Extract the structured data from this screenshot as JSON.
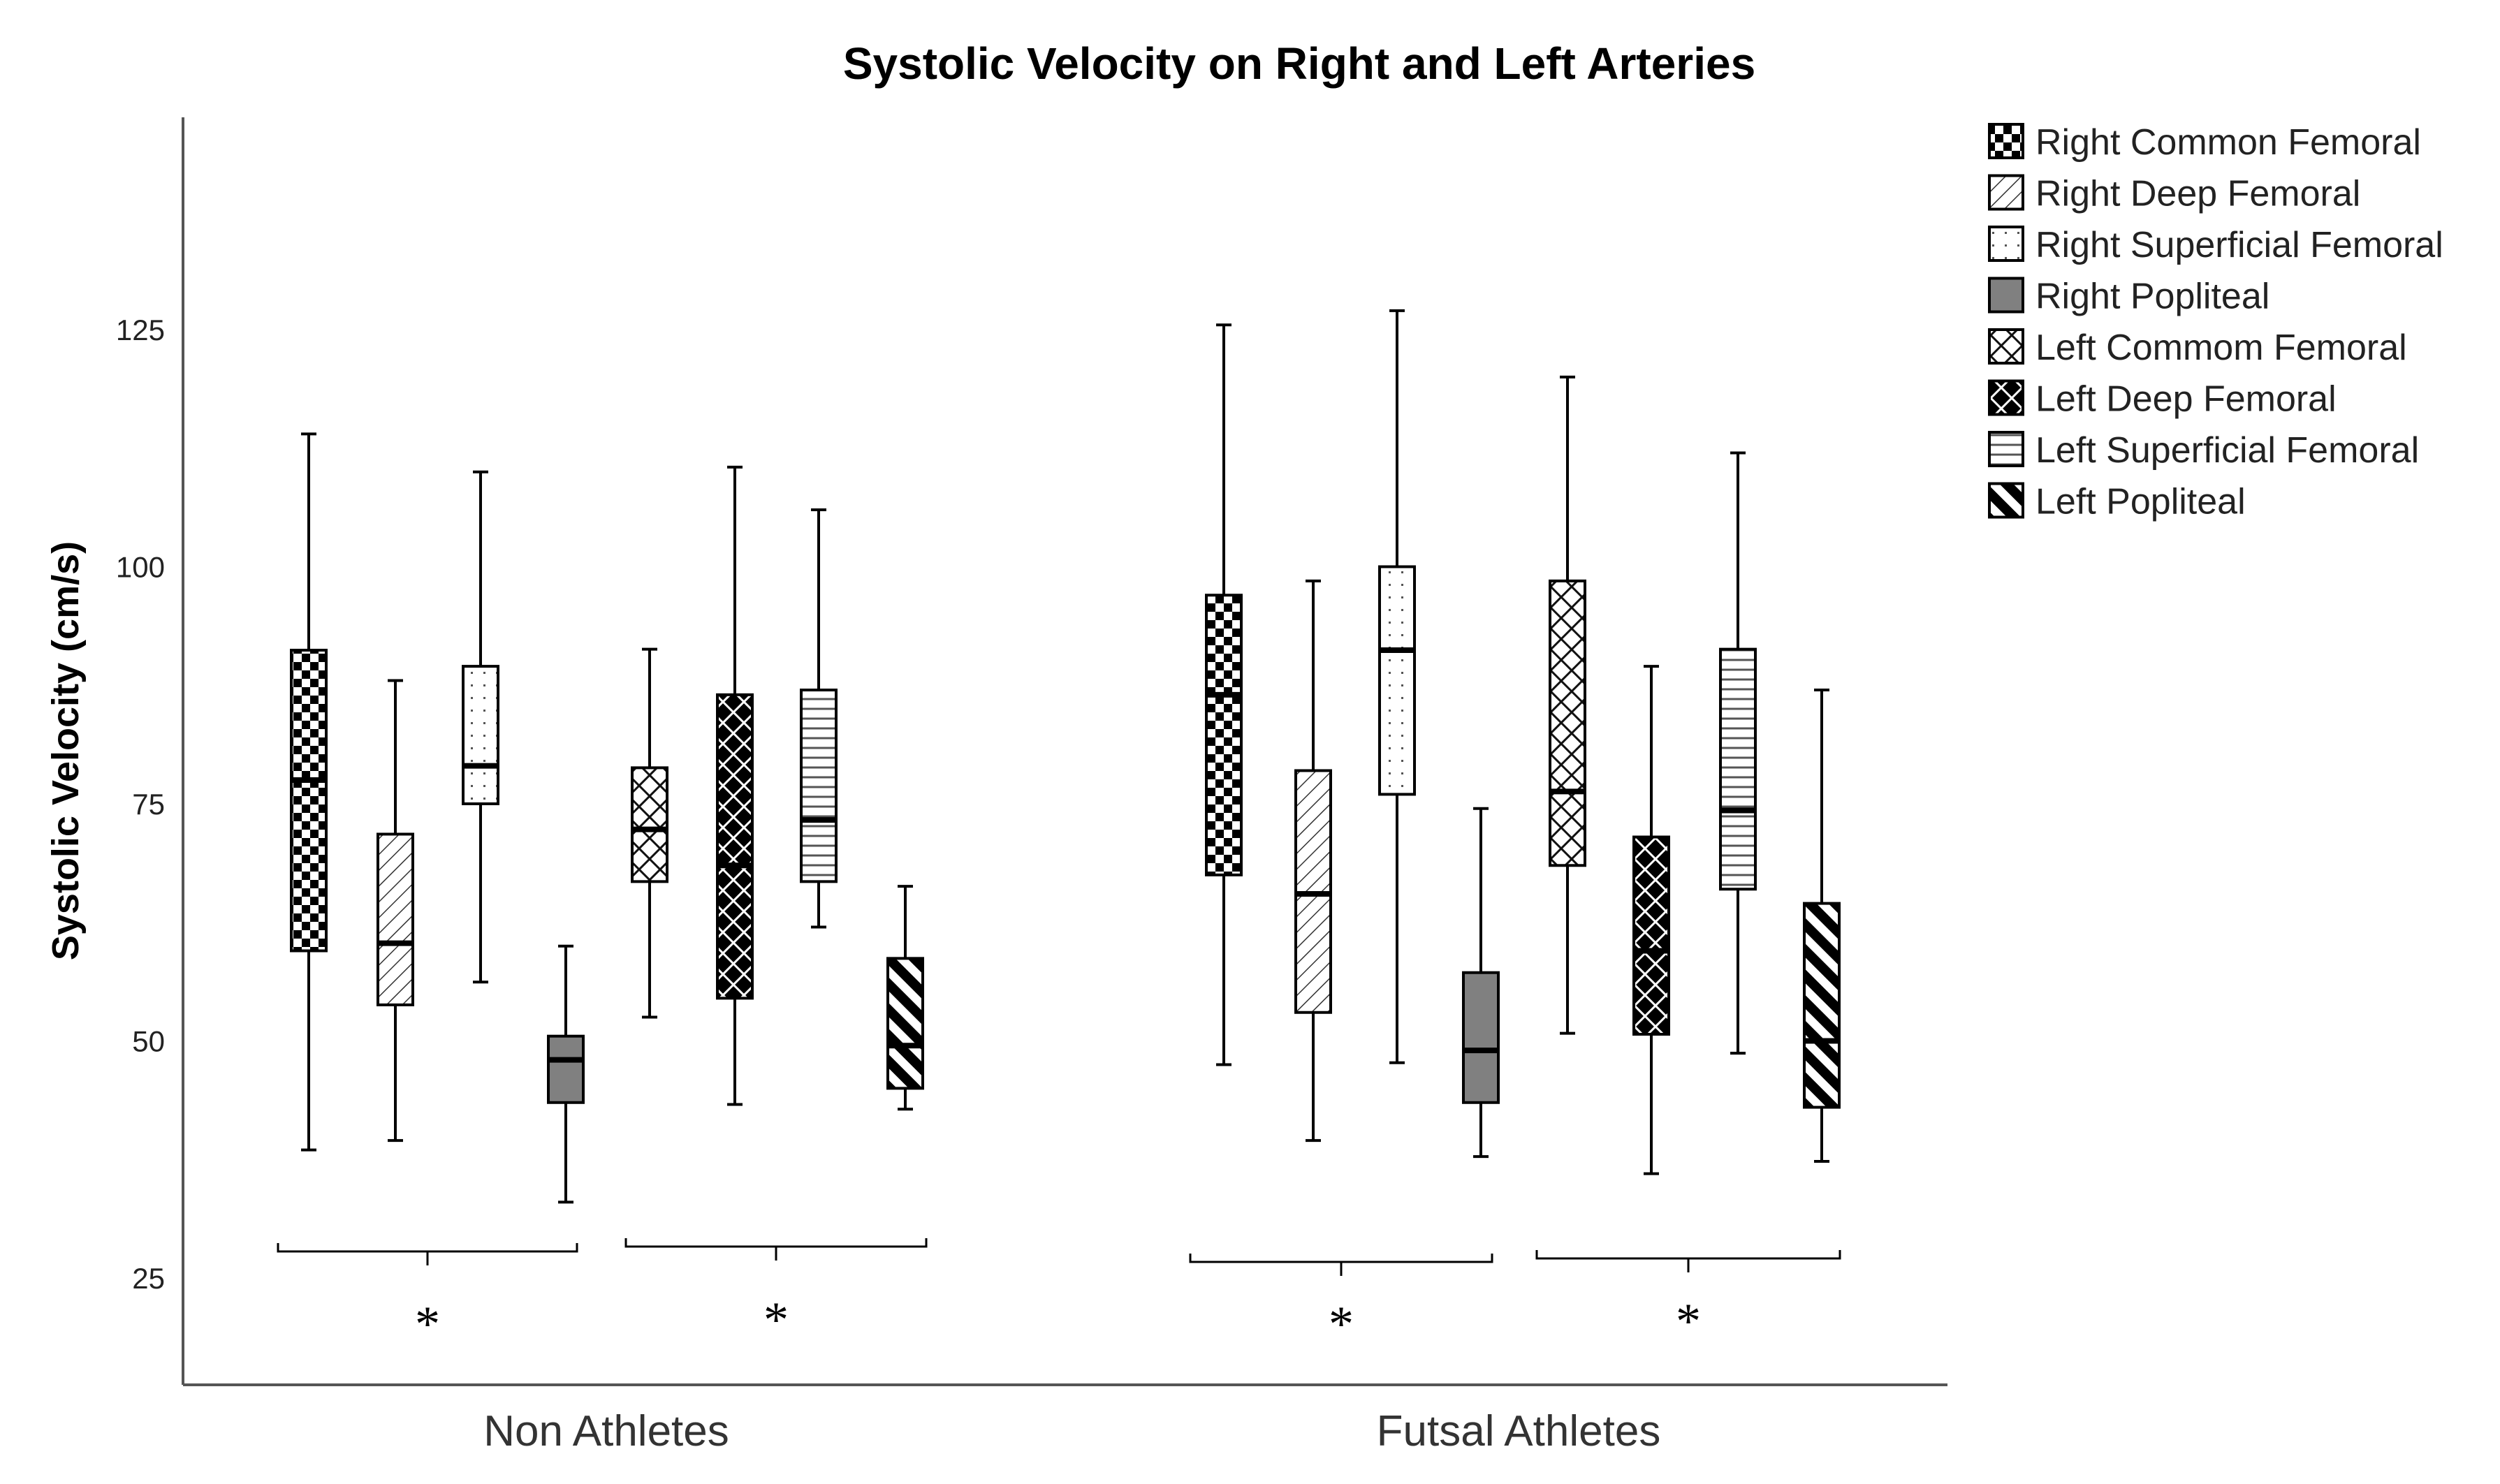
{
  "chart_data": {
    "type": "boxplot",
    "title": "Systolic Velocity on Right and Left Arteries",
    "ylabel": "Systolic Velocity (cm/s)",
    "xlabel": "",
    "ylim": [
      20,
      145
    ],
    "yticks": [
      25,
      50,
      75,
      100,
      125
    ],
    "groups": [
      "Non Athletes",
      "Futsal Athletes"
    ],
    "significance_marker": "*",
    "series": [
      {
        "name": "Right Common Femoral",
        "pattern": "checker",
        "values": [
          {
            "min": 38.5,
            "q1": 59.5,
            "median": 77.5,
            "q3": 91.2,
            "max": 114
          },
          {
            "min": 47.5,
            "q1": 67.5,
            "median": 86.5,
            "q3": 97,
            "max": 125.5
          }
        ]
      },
      {
        "name": "Right Deep Femoral",
        "pattern": "diag-light",
        "values": [
          {
            "min": 39.5,
            "q1": 53.8,
            "median": 60.3,
            "q3": 71.8,
            "max": 88
          },
          {
            "min": 39.5,
            "q1": 53,
            "median": 65.5,
            "q3": 78.5,
            "max": 98.5
          }
        ]
      },
      {
        "name": "Right Superficial Femoral",
        "pattern": "dots",
        "values": [
          {
            "min": 56.2,
            "q1": 75,
            "median": 79,
            "q3": 89.5,
            "max": 110
          },
          {
            "min": 47.7,
            "q1": 76,
            "median": 91.2,
            "q3": 100,
            "max": 127
          }
        ]
      },
      {
        "name": "Right Popliteal",
        "pattern": "solid-gray",
        "values": [
          {
            "min": 33,
            "q1": 43.5,
            "median": 48,
            "q3": 50.5,
            "max": 60
          },
          {
            "min": 37.8,
            "q1": 43.5,
            "median": 49,
            "q3": 57.2,
            "max": 74.5
          }
        ]
      },
      {
        "name": "Left Commom Femoral",
        "pattern": "crosshatch",
        "values": [
          {
            "min": 52.5,
            "q1": 66.8,
            "median": 72.3,
            "q3": 78.8,
            "max": 91.3
          },
          {
            "min": 50.8,
            "q1": 68.5,
            "median": 76.3,
            "q3": 98.5,
            "max": 120
          }
        ]
      },
      {
        "name": "Left Deep Femoral",
        "pattern": "dark-crosshatch",
        "values": [
          {
            "min": 43.3,
            "q1": 54.5,
            "median": 68.5,
            "q3": 86.5,
            "max": 110.5
          },
          {
            "min": 36,
            "q1": 50.7,
            "median": 59.5,
            "q3": 71.5,
            "max": 89.5
          }
        ]
      },
      {
        "name": "Left Superficial Femoral",
        "pattern": "horizontal",
        "values": [
          {
            "min": 62,
            "q1": 66.8,
            "median": 73.3,
            "q3": 87,
            "max": 106
          },
          {
            "min": 48.7,
            "q1": 66,
            "median": 74.3,
            "q3": 91.3,
            "max": 112
          }
        ]
      },
      {
        "name": "Left Popliteal",
        "pattern": "diag-bold",
        "values": [
          {
            "min": 42.8,
            "q1": 45,
            "median": 49.5,
            "q3": 58.7,
            "max": 66.3
          },
          {
            "min": 37.3,
            "q1": 43,
            "median": 50,
            "q3": 64.5,
            "max": 87
          }
        ]
      }
    ]
  }
}
